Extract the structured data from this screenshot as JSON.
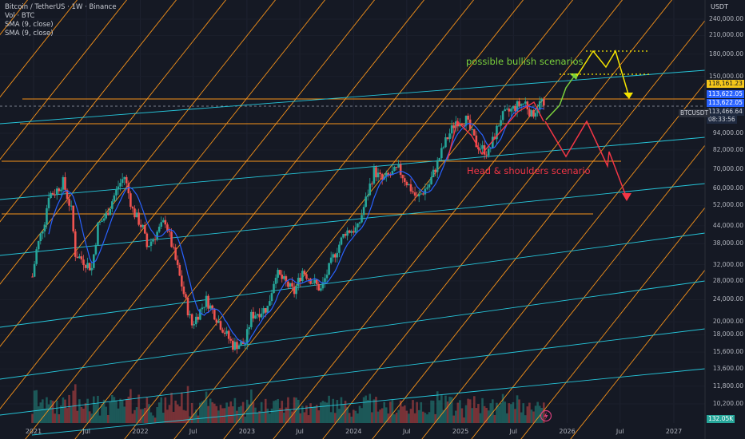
{
  "legend": {
    "symbol": "Bitcoin / TetherUS · 1W · Binance",
    "vol": "Vol · BTC",
    "sma1": "SMA (9, close)",
    "sma2": "SMA (9, close)"
  },
  "currency": "USDT",
  "colors": {
    "background": "#151924",
    "orange_lines": "#f7931a",
    "teal_lines": "#26c6da",
    "up_candle": "#26a69a",
    "down_candle": "#ef5350",
    "sma": "#2962ff",
    "bullish": "#7bd13c",
    "bearish": "#f23645",
    "yellow": "#f5e400"
  },
  "annotations": {
    "bullish": "possible bullish scenarios",
    "bearish": "Head & shoulders scenario"
  },
  "price_tags": {
    "t1": "118,161.23",
    "t2": "113,622.05",
    "t3": "113,622.05",
    "t4": "113,466.64",
    "t5": "08:33:56",
    "symbol_tag": "BTCUSDT",
    "vol_tag": "132.05K"
  },
  "chart_data": {
    "type": "line",
    "title": "Bitcoin / TetherUS · 1W · Binance",
    "log_scale": true,
    "x_ticks": [
      "2021",
      "Jul",
      "2022",
      "Jul",
      "2023",
      "Jul",
      "2024",
      "Jul",
      "2025",
      "Jul",
      "2026",
      "Jul",
      "2027"
    ],
    "y_ticks": [
      "240,000.00",
      "210,000.00",
      "180,000.00",
      "150,000.00",
      "118,161.23",
      "113,622.05",
      "113,622.05",
      "113,466.64",
      "94,000.00",
      "82,000.00",
      "70,000.00",
      "60,000.00",
      "52,000.00",
      "44,000.00",
      "38,000.00",
      "32,000.00",
      "28,000.00",
      "24,000.00",
      "20,000.00",
      "18,000.00",
      "15,600.00",
      "13,600.00",
      "11,800.00",
      "10,200.00"
    ],
    "ylim": [
      9000,
      260000
    ],
    "series": [
      {
        "values_by_date": [
          [
            "2020-12-28",
            29000
          ],
          [
            "2021-01-11",
            36000
          ],
          [
            "2021-02-08",
            46000
          ],
          [
            "2021-02-22",
            57000
          ],
          [
            "2021-03-15",
            58000
          ],
          [
            "2021-04-12",
            63000
          ],
          [
            "2021-05-10",
            50000
          ],
          [
            "2021-05-24",
            35000
          ],
          [
            "2021-06-21",
            33000
          ],
          [
            "2021-07-19",
            31000
          ],
          [
            "2021-08-09",
            44000
          ],
          [
            "2021-09-06",
            48000
          ],
          [
            "2021-10-18",
            61000
          ],
          [
            "2021-11-08",
            66000
          ],
          [
            "2021-12-06",
            50000
          ],
          [
            "2022-01-10",
            43000
          ],
          [
            "2022-01-24",
            37000
          ],
          [
            "2022-03-28",
            46000
          ],
          [
            "2022-05-09",
            31000
          ],
          [
            "2022-06-13",
            22000
          ],
          [
            "2022-06-27",
            19500
          ],
          [
            "2022-08-15",
            24000
          ],
          [
            "2022-10-03",
            19500
          ],
          [
            "2022-11-14",
            16500
          ],
          [
            "2022-12-26",
            16800
          ],
          [
            "2023-01-16",
            21000
          ],
          [
            "2023-03-13",
            22500
          ],
          [
            "2023-04-10",
            30000
          ],
          [
            "2023-06-12",
            25500
          ],
          [
            "2023-07-10",
            30500
          ],
          [
            "2023-09-11",
            26000
          ],
          [
            "2023-10-23",
            34000
          ],
          [
            "2023-12-04",
            42000
          ],
          [
            "2024-01-15",
            43000
          ],
          [
            "2024-03-11",
            69000
          ],
          [
            "2024-04-08",
            64000
          ],
          [
            "2024-06-03",
            70000
          ],
          [
            "2024-08-05",
            55000
          ],
          [
            "2024-09-16",
            62000
          ],
          [
            "2024-11-11",
            88000
          ],
          [
            "2024-12-16",
            104000
          ],
          [
            "2025-01-20",
            105000
          ],
          [
            "2025-02-24",
            86000
          ],
          [
            "2025-04-07",
            80000
          ],
          [
            "2025-05-19",
            107000
          ],
          [
            "2025-07-14",
            118000
          ],
          [
            "2025-08-11",
            121000
          ],
          [
            "2025-09-01",
            109000
          ],
          [
            "2025-10-06",
            123000
          ],
          [
            "2025-10-13",
            113500
          ]
        ]
      }
    ]
  }
}
